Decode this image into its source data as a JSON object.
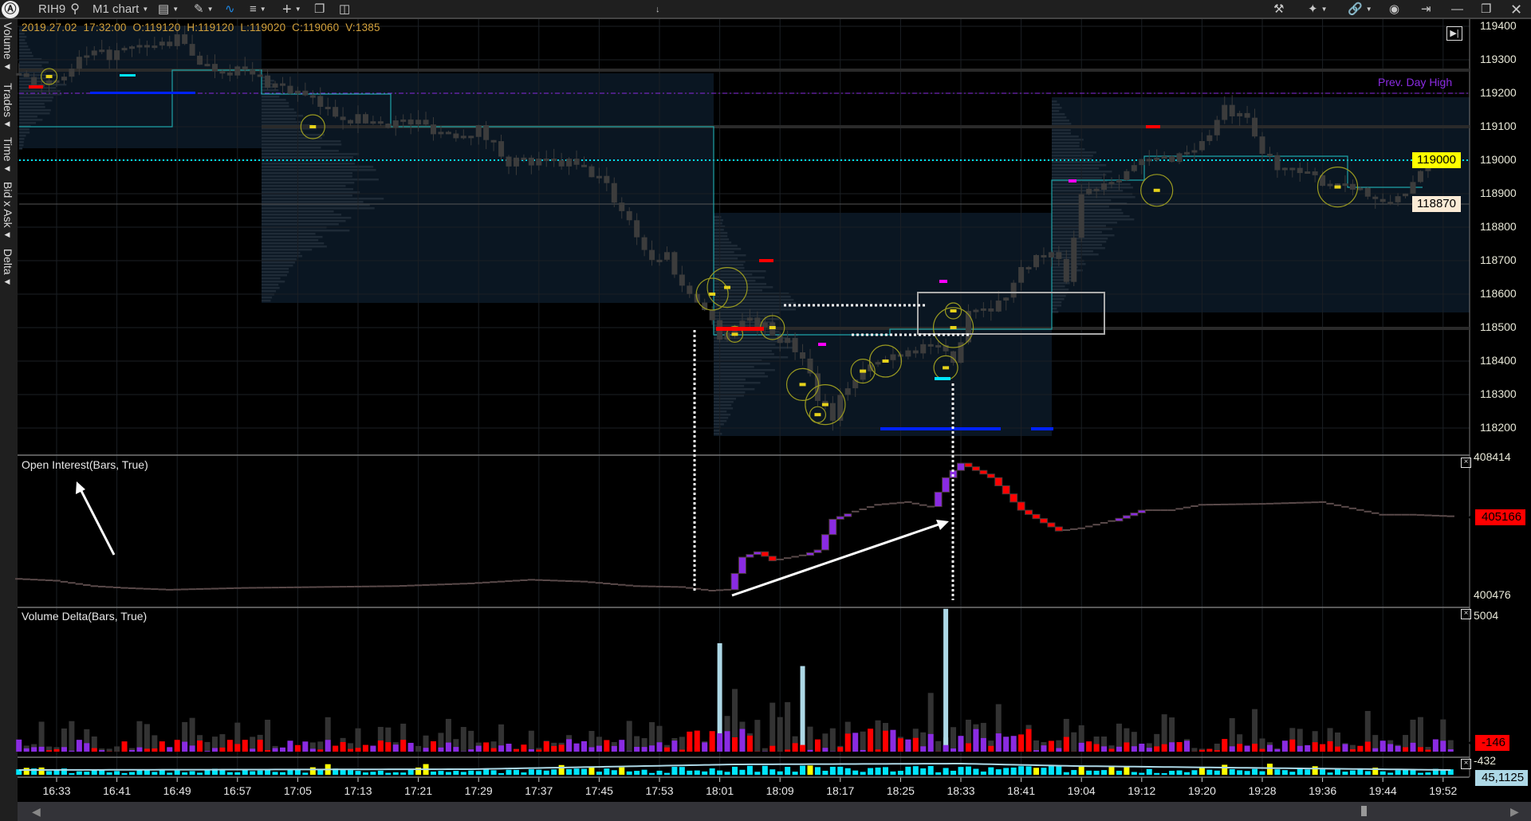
{
  "toolbar": {
    "logo": "logo-icon",
    "symbol": "RIH9",
    "chart_type": "M1 chart",
    "icons_left": [
      "search-icon",
      "display-icon",
      "pencil-icon",
      "indicator-icon",
      "template-icon",
      "plus-icon",
      "window-icon",
      "layout-icon"
    ],
    "icons_right": [
      "tools-icon",
      "crosshair-icon",
      "link-icon",
      "camera-icon",
      "pin-icon",
      "minimize-icon",
      "restore-icon",
      "close-icon"
    ]
  },
  "side_tabs": [
    "Volume",
    "Trades",
    "Time",
    "Bid x Ask",
    "Delta"
  ],
  "ohlc_info": "2019.27.02  17:32:00  O:119120  H:119120  L:119020  C:119060  V:1385",
  "prev_day_high_label": "Prev. Day High",
  "price_axis": [
    "119400",
    "119300",
    "119200",
    "119100",
    "119000",
    "118900",
    "118800",
    "118700",
    "118600",
    "118500",
    "118400",
    "118300",
    "118200"
  ],
  "price_tags": {
    "last": "119000",
    "cursor": "118870"
  },
  "time_axis": [
    "16:33",
    "16:41",
    "16:49",
    "16:57",
    "17:05",
    "17:13",
    "17:21",
    "17:29",
    "17:37",
    "17:45",
    "17:53",
    "18:01",
    "18:09",
    "18:17",
    "18:25",
    "18:33",
    "18:41",
    "19:04",
    "19:12",
    "19:20",
    "19:28",
    "19:36",
    "19:44",
    "19:52"
  ],
  "open_interest": {
    "title": "Open Interest(Bars, True)",
    "max_label": "408414",
    "min_label": "400476",
    "current": "405166",
    "path": [
      [
        0,
        401700
      ],
      [
        5,
        401600
      ],
      [
        10,
        401300
      ],
      [
        14,
        401200
      ],
      [
        20,
        401100
      ],
      [
        30,
        401200
      ],
      [
        40,
        401250
      ],
      [
        50,
        401300
      ],
      [
        60,
        401450
      ],
      [
        68,
        401650
      ],
      [
        75,
        401550
      ],
      [
        82,
        401300
      ],
      [
        88,
        401250
      ],
      [
        92,
        401050
      ],
      [
        94,
        401100
      ],
      [
        96,
        402900
      ],
      [
        98,
        403200
      ],
      [
        100,
        402700
      ],
      [
        104,
        403000
      ],
      [
        106,
        403300
      ],
      [
        108,
        405000
      ],
      [
        110,
        405300
      ],
      [
        114,
        405800
      ],
      [
        118,
        405950
      ],
      [
        121,
        405700
      ],
      [
        123,
        407300
      ],
      [
        125,
        408100
      ],
      [
        127,
        407700
      ],
      [
        129,
        407300
      ],
      [
        131,
        406400
      ],
      [
        133,
        405500
      ],
      [
        136,
        404800
      ],
      [
        138,
        404350
      ],
      [
        141,
        404500
      ],
      [
        145,
        404900
      ],
      [
        149,
        405500
      ],
      [
        153,
        405500
      ],
      [
        157,
        405800
      ],
      [
        165,
        405850
      ],
      [
        173,
        405950
      ],
      [
        177,
        405600
      ],
      [
        181,
        405250
      ],
      [
        185,
        405250
      ],
      [
        190,
        405166
      ]
    ]
  },
  "volume_delta": {
    "title": "Volume Delta(Bars, True)",
    "max_label": "5004",
    "current": "-146",
    "spikes": [
      [
        93,
        3800
      ],
      [
        104,
        3000
      ],
      [
        123,
        5004
      ]
    ]
  },
  "sub_indicator": {
    "min_label": "-432",
    "current": "45,1125"
  },
  "price_path": [
    [
      0,
      119260
    ],
    [
      5,
      119220
    ],
    [
      8,
      119300
    ],
    [
      13,
      119320
    ],
    [
      18,
      119340
    ],
    [
      21,
      119360
    ],
    [
      25,
      119280
    ],
    [
      29,
      119270
    ],
    [
      37,
      119200
    ],
    [
      41,
      119150
    ],
    [
      45,
      119120
    ],
    [
      53,
      119110
    ],
    [
      57,
      119080
    ],
    [
      61,
      119090
    ],
    [
      65,
      119000
    ],
    [
      69,
      118990
    ],
    [
      73,
      118990
    ],
    [
      77,
      118950
    ],
    [
      81,
      118820
    ],
    [
      84,
      118700
    ],
    [
      86,
      118720
    ],
    [
      88,
      118620
    ],
    [
      90,
      118590
    ],
    [
      93,
      118480
    ],
    [
      97,
      118530
    ],
    [
      101,
      118470
    ],
    [
      104,
      118420
    ],
    [
      106,
      118300
    ],
    [
      108,
      118240
    ],
    [
      110,
      118330
    ],
    [
      113,
      118380
    ],
    [
      117,
      118430
    ],
    [
      121,
      118450
    ],
    [
      124,
      118390
    ],
    [
      126,
      118560
    ],
    [
      130,
      118570
    ],
    [
      134,
      118700
    ],
    [
      137,
      118720
    ],
    [
      139,
      118650
    ],
    [
      141,
      118900
    ],
    [
      145,
      118950
    ],
    [
      149,
      118990
    ],
    [
      153,
      119010
    ],
    [
      157,
      119050
    ],
    [
      160,
      119150
    ],
    [
      163,
      119110
    ],
    [
      165,
      119020
    ],
    [
      169,
      118960
    ],
    [
      173,
      118940
    ],
    [
      177,
      118930
    ],
    [
      181,
      118860
    ],
    [
      185,
      118930
    ],
    [
      189,
      119010
    ],
    [
      190,
      119000
    ]
  ],
  "big_trades": [
    [
      4,
      119250
    ],
    [
      39,
      119100
    ],
    [
      92,
      118600
    ],
    [
      94,
      118620
    ],
    [
      95,
      118480
    ],
    [
      100,
      118500
    ],
    [
      104,
      118330
    ],
    [
      107,
      118270
    ],
    [
      106,
      118240
    ],
    [
      112,
      118370
    ],
    [
      115,
      118400
    ],
    [
      124,
      118500
    ],
    [
      124,
      118550
    ],
    [
      123,
      118380
    ],
    [
      151,
      118910
    ],
    [
      175,
      118920
    ]
  ],
  "colors": {
    "accent_cyan": "#00e5ff",
    "prev_day_high": "#8a2be2",
    "last_price": "#ffff00",
    "down": "#ff0000",
    "up": "#8a2be2",
    "spike": "#add8e6"
  }
}
